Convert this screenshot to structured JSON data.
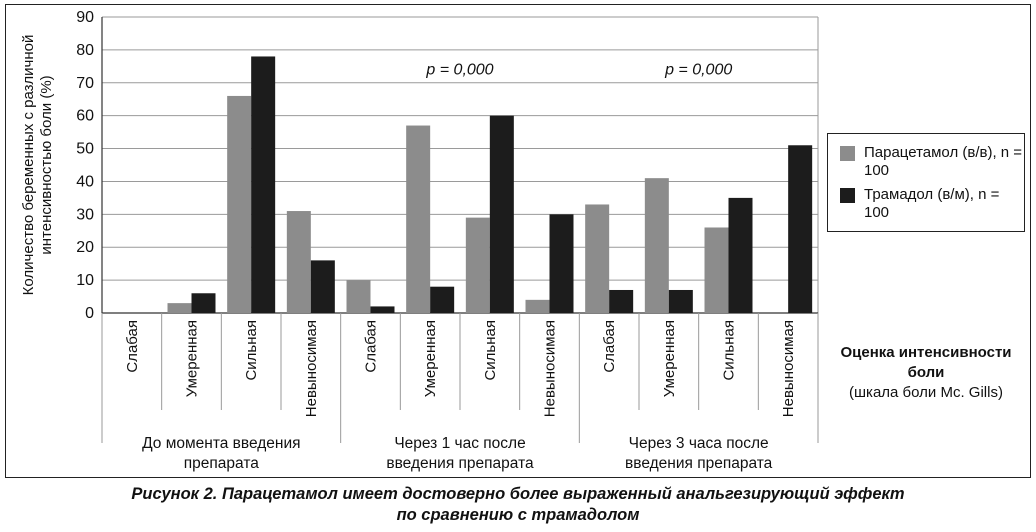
{
  "chart_data": {
    "type": "bar",
    "ylabel": "Количество беременных с различной интенсивностью боли (%)",
    "ylim": [
      0,
      90
    ],
    "yticks": [
      0,
      10,
      20,
      30,
      40,
      50,
      60,
      70,
      80,
      90
    ],
    "grid": true,
    "categories": [
      "Слабая",
      "Умеренная",
      "Сильная",
      "Невыносимая",
      "Слабая",
      "Умеренная",
      "Сильная",
      "Невыносимая",
      "Слабая",
      "Умеренная",
      "Сильная",
      "Невыносимая"
    ],
    "groups": [
      {
        "label": "До момента введения препарата"
      },
      {
        "label": "Через 1 час после введения препарата"
      },
      {
        "label": "Через 3 часа после введения препарата"
      }
    ],
    "series": [
      {
        "name": "Парацетамол (в/в), n = 100",
        "color": "#8c8c8c",
        "values": [
          0,
          3,
          66,
          31,
          10,
          57,
          29,
          4,
          33,
          41,
          26,
          0
        ]
      },
      {
        "name": "Трамадол (в/м), n = 100",
        "color": "#1c1c1c",
        "values": [
          0,
          6,
          78,
          16,
          2,
          8,
          60,
          30,
          7,
          7,
          35,
          51
        ]
      }
    ],
    "annotations": [
      "p = 0,000",
      "p = 0,000"
    ],
    "legend_position": "right",
    "xlabel_title": "Оценка интенсивности боли",
    "xlabel_subtitle": "(шкала боли Mc. Gills)"
  },
  "caption": {
    "line1": "Рисунок 2.  Парацетамол имеет достоверно более выраженный анальгезирующий эффект",
    "line2": "по сравнению с трамадолом"
  }
}
